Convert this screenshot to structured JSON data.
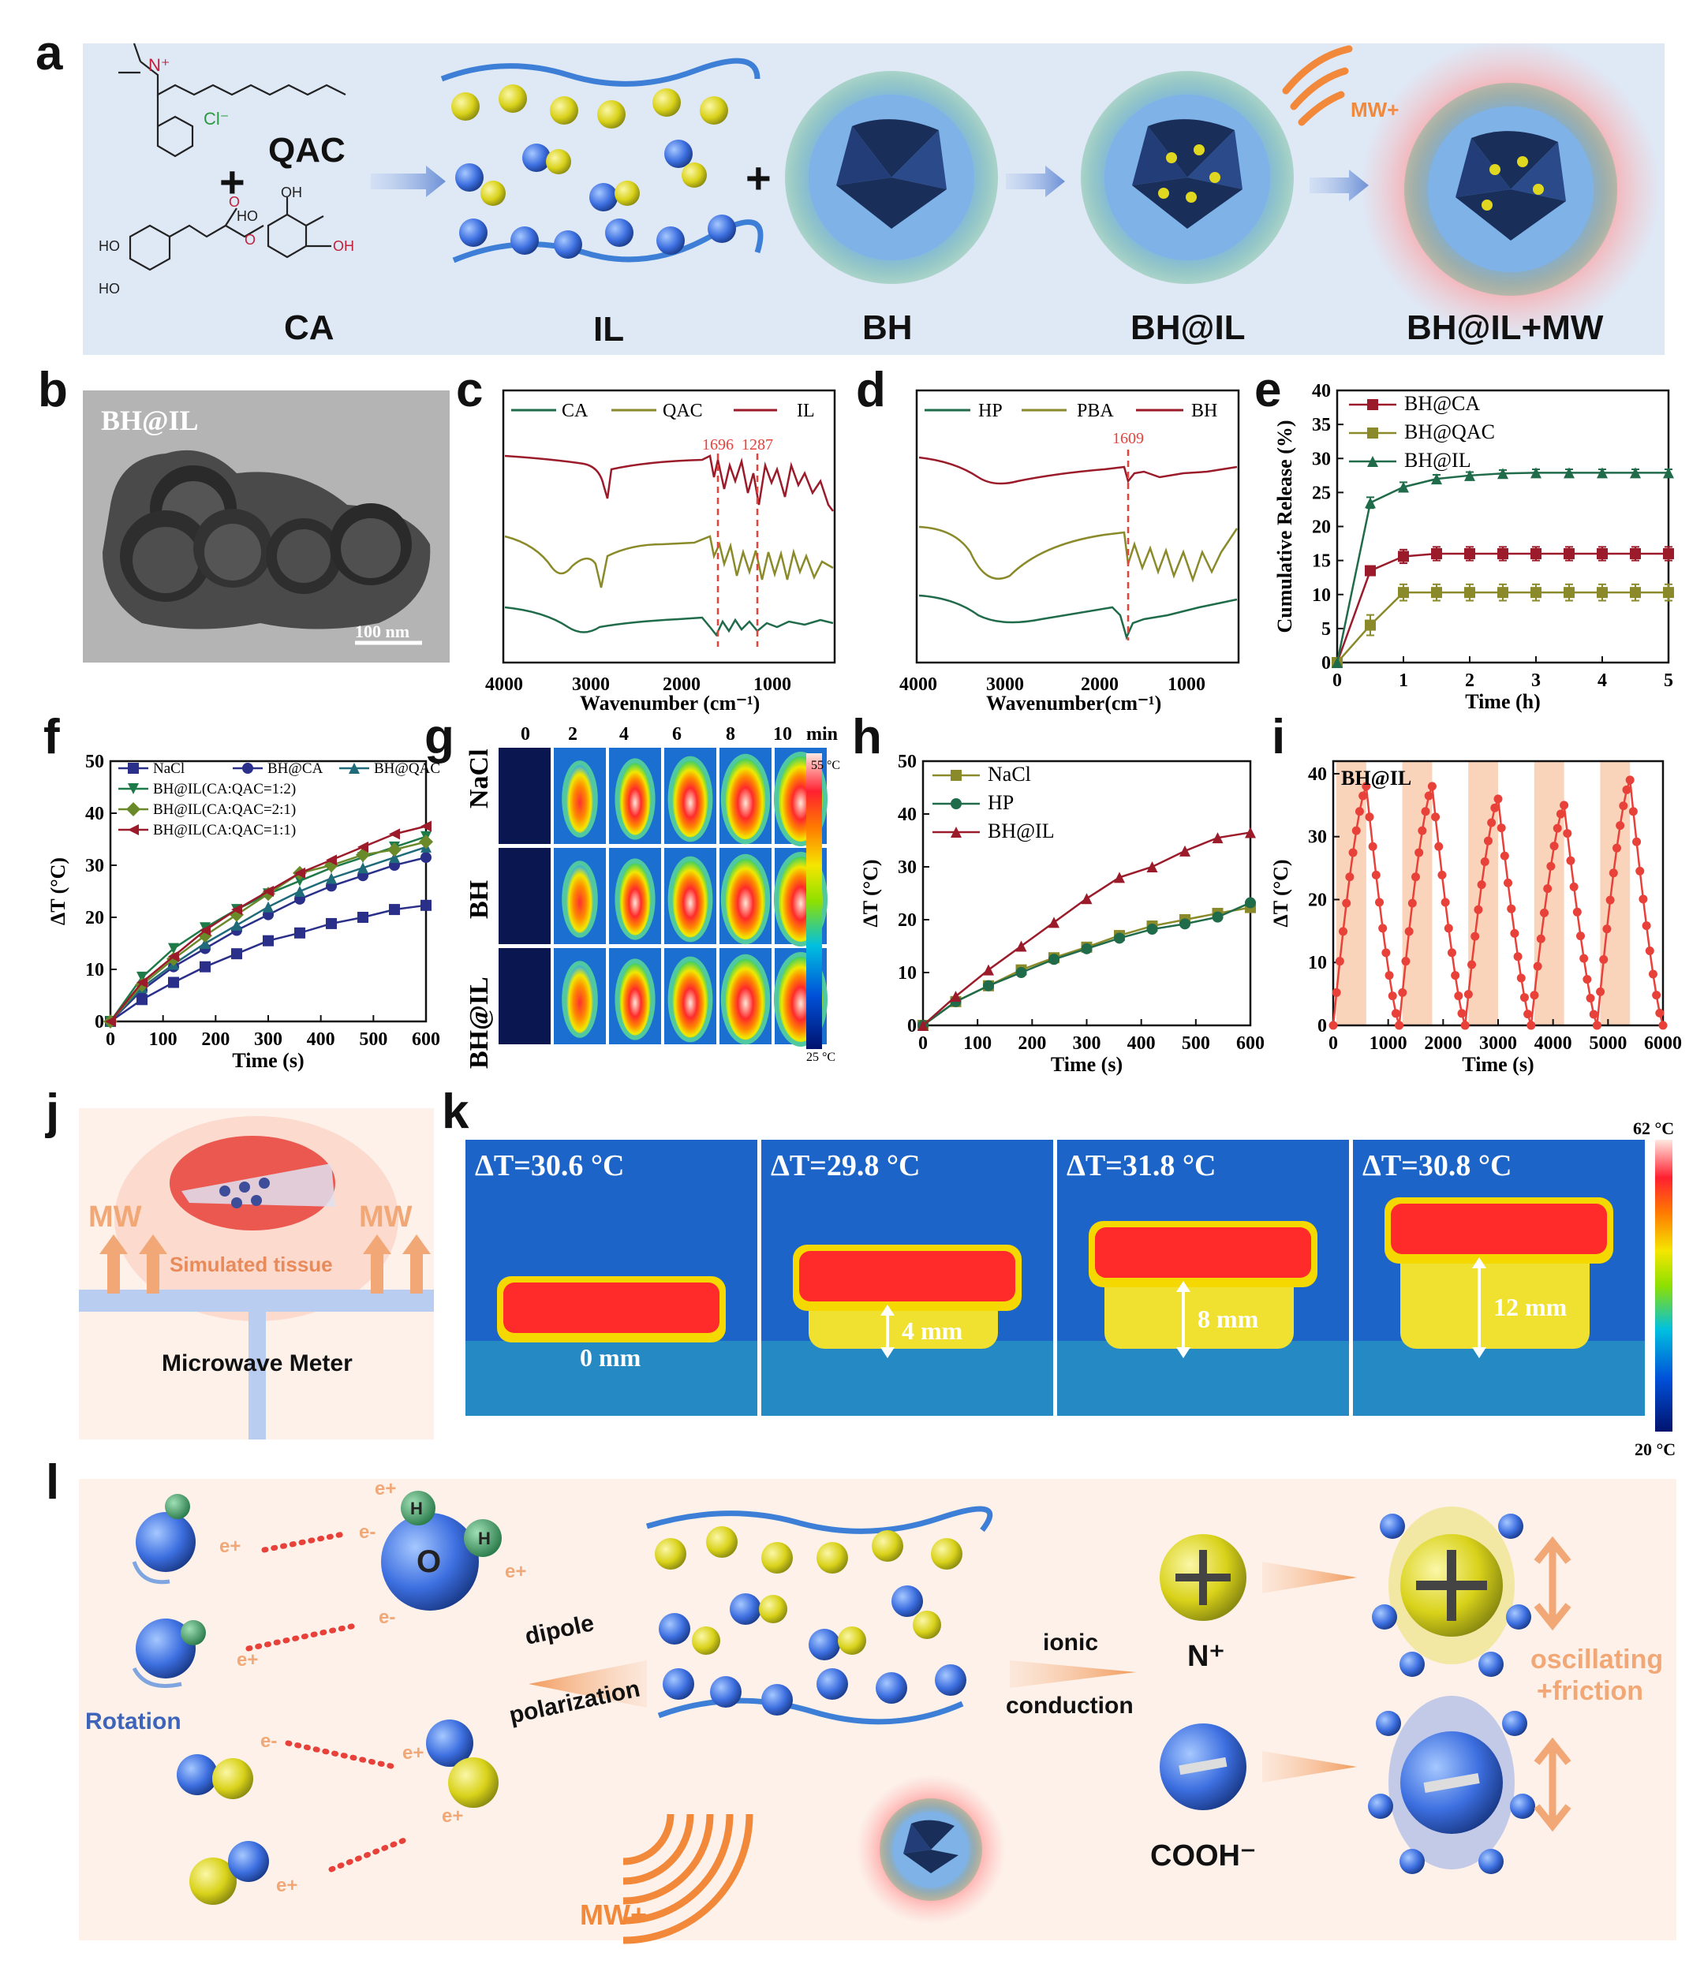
{
  "panel_letters": [
    "a",
    "b",
    "c",
    "d",
    "e",
    "f",
    "g",
    "h",
    "i",
    "j",
    "k",
    "l"
  ],
  "panel_a": {
    "labels": [
      "QAC",
      "CA",
      "IL",
      "BH",
      "BH@IL",
      "BH@IL+MW"
    ],
    "chem_texts": {
      "cl": "Cl⁻",
      "n": "N⁺",
      "oh": "OH",
      "ho": "HO",
      "ho_ring": "HO",
      "oh_top": "OH",
      "o": "O",
      "o2": "O"
    },
    "mw_label": "MW+",
    "plus": "+"
  },
  "panel_b": {
    "label": "BH@IL",
    "scalebar": "100 nm"
  },
  "panel_c": {
    "legend": [
      "CA",
      "QAC",
      "IL"
    ],
    "peaks": [
      "1696",
      "1287"
    ],
    "xticks": [
      "4000",
      "3000",
      "2000",
      "1000"
    ],
    "xlabel": "Wavenumber (cm⁻¹)"
  },
  "panel_d": {
    "legend": [
      "HP",
      "PBA",
      "BH"
    ],
    "peaks": [
      "1609"
    ],
    "xticks": [
      "4000",
      "3000",
      "2000",
      "1000"
    ],
    "xlabel": "Wavenumber(cm⁻¹)"
  },
  "panel_g": {
    "time_labels": [
      "0",
      "2",
      "4",
      "6",
      "8",
      "10"
    ],
    "time_unit": "min",
    "rows": [
      "NaCl",
      "BH",
      "BH@IL"
    ],
    "scale_max": "55 °C",
    "scale_min": "25 °C"
  },
  "panel_j": {
    "mw_left": "MW",
    "mw_right": "MW",
    "tissue": "Simulated tissue",
    "meter": "Microwave Meter"
  },
  "panel_k": {
    "frames": [
      {
        "dt": "ΔT=30.6 °C",
        "depth": "0 mm"
      },
      {
        "dt": "ΔT=29.8 °C",
        "depth": "4 mm"
      },
      {
        "dt": "ΔT=31.8 °C",
        "depth": "8 mm"
      },
      {
        "dt": "ΔT=30.8 °C",
        "depth": "12 mm"
      }
    ],
    "scale_max": "62 °C",
    "scale_min": "20 °C"
  },
  "panel_l": {
    "o_atom": "O",
    "h_atom": "H",
    "electron_pos": "e+",
    "electron_neg": "e-",
    "rotation": "Rotation",
    "dipole": "dipole",
    "polarization": "polarization",
    "ionic": "ionic",
    "conduction": "conduction",
    "cation": "N⁺",
    "anion": "COOH⁻",
    "oscillating": "oscillating",
    "friction": "+friction",
    "mw": "MW+"
  },
  "colors": {
    "dark_red": "#9b1b2a",
    "olive": "#8a8a2a",
    "dark_green": "#1f6b4a",
    "red": "#e8413a",
    "navy": "#2a2f8a",
    "light_blue_bg": "#dfe8f5",
    "peach_bg": "#fdf1ea",
    "orange": "#f5a66a"
  },
  "chart_data": [
    {
      "panel": "e",
      "type": "line",
      "xlabel": "Time (h)",
      "ylabel": "Cumulative Release (%)",
      "xlim": [
        0,
        5
      ],
      "ylim": [
        0,
        40
      ],
      "xticks": [
        0,
        1,
        2,
        3,
        4,
        5
      ],
      "yticks": [
        0,
        5,
        10,
        15,
        20,
        25,
        30,
        35,
        40
      ],
      "legend": "top-left",
      "series": [
        {
          "name": "BH@CA",
          "color": "#9b1b2a",
          "marker": "square",
          "x": [
            0,
            0.5,
            1,
            1.5,
            2,
            2.5,
            3,
            3.5,
            4,
            4.5,
            5
          ],
          "y": [
            0,
            13.5,
            15.6,
            16.0,
            16.0,
            16.0,
            16.0,
            16.0,
            16.0,
            16.0,
            16.0
          ],
          "err": [
            0,
            0.5,
            1.0,
            1.0,
            1.0,
            1.0,
            1.0,
            1.0,
            1.0,
            1.0,
            1.0
          ]
        },
        {
          "name": "BH@QAC",
          "color": "#8a8a2a",
          "marker": "square",
          "x": [
            0,
            0.5,
            1,
            1.5,
            2,
            2.5,
            3,
            3.5,
            4,
            4.5,
            5
          ],
          "y": [
            0,
            5.5,
            10.3,
            10.3,
            10.3,
            10.3,
            10.3,
            10.3,
            10.3,
            10.3,
            10.3
          ],
          "err": [
            0,
            1.5,
            1.2,
            1.2,
            1.2,
            1.2,
            1.2,
            1.2,
            1.2,
            1.2,
            1.2
          ]
        },
        {
          "name": "BH@IL",
          "color": "#1f6b4a",
          "marker": "triangle",
          "x": [
            0,
            0.5,
            1,
            1.5,
            2,
            2.5,
            3,
            3.5,
            4,
            4.5,
            5
          ],
          "y": [
            0,
            23.5,
            25.8,
            27.0,
            27.5,
            27.8,
            27.9,
            27.9,
            27.9,
            27.9,
            27.9
          ],
          "err": [
            0,
            0.8,
            0.7,
            0.6,
            0.5,
            0.5,
            0.5,
            0.5,
            0.5,
            0.5,
            0.5
          ]
        }
      ]
    },
    {
      "panel": "f",
      "type": "line",
      "xlabel": "Time (s)",
      "ylabel": "ΔT (°C)",
      "xlim": [
        0,
        600
      ],
      "ylim": [
        0,
        50
      ],
      "xticks": [
        0,
        100,
        200,
        300,
        400,
        500,
        600
      ],
      "yticks": [
        0,
        10,
        20,
        30,
        40,
        50
      ],
      "legend": "top",
      "series": [
        {
          "name": "NaCl",
          "color": "#2a2f8a",
          "marker": "square",
          "x": [
            0,
            60,
            120,
            180,
            240,
            300,
            360,
            420,
            480,
            540,
            600
          ],
          "y": [
            0,
            4.2,
            7.5,
            10.5,
            13,
            15.5,
            17,
            18.8,
            20,
            21.5,
            22.3
          ]
        },
        {
          "name": "BH@CA",
          "color": "#2a2f8a",
          "marker": "circle",
          "x": [
            0,
            60,
            120,
            180,
            240,
            300,
            360,
            420,
            480,
            540,
            600
          ],
          "y": [
            0,
            6,
            10.5,
            14,
            17.5,
            20.5,
            23.5,
            26,
            28,
            30,
            31.5
          ]
        },
        {
          "name": "BH@QAC",
          "color": "#1f6b7a",
          "marker": "triangle",
          "x": [
            0,
            60,
            120,
            180,
            240,
            300,
            360,
            420,
            480,
            540,
            600
          ],
          "y": [
            0,
            6.5,
            11,
            15,
            18.5,
            22,
            25,
            27.5,
            29.5,
            31.5,
            33.5
          ]
        },
        {
          "name": "BH@IL(CA:QAC=1:2)",
          "color": "#1f7a4a",
          "marker": "triangle-down",
          "x": [
            0,
            60,
            120,
            180,
            240,
            300,
            360,
            420,
            480,
            540,
            600
          ],
          "y": [
            0,
            8.5,
            14,
            18,
            21.5,
            24.5,
            27,
            29.5,
            31.5,
            33.5,
            35.5
          ]
        },
        {
          "name": "BH@IL(CA:QAC=2:1)",
          "color": "#6a8a2a",
          "marker": "diamond",
          "x": [
            0,
            60,
            120,
            180,
            240,
            300,
            360,
            420,
            480,
            540,
            600
          ],
          "y": [
            0,
            7,
            12,
            16.5,
            20.5,
            24.5,
            28.5,
            30,
            32,
            33,
            34.5
          ]
        },
        {
          "name": "BH@IL(CA:QAC=1:1)",
          "color": "#9b1b2a",
          "marker": "triangle-left",
          "x": [
            0,
            60,
            120,
            180,
            240,
            300,
            360,
            420,
            480,
            540,
            600
          ],
          "y": [
            0,
            7.5,
            12.5,
            17.5,
            21.5,
            25,
            28.5,
            31,
            33.5,
            36,
            37.5
          ]
        }
      ]
    },
    {
      "panel": "h",
      "type": "line",
      "xlabel": "Time (s)",
      "ylabel": "ΔT (°C)",
      "xlim": [
        0,
        600
      ],
      "ylim": [
        0,
        50
      ],
      "xticks": [
        0,
        100,
        200,
        300,
        400,
        500,
        600
      ],
      "yticks": [
        0,
        10,
        20,
        30,
        40,
        50
      ],
      "legend": "top-left",
      "series": [
        {
          "name": "NaCl",
          "color": "#8a8a2a",
          "marker": "square",
          "x": [
            0,
            60,
            120,
            180,
            240,
            300,
            360,
            420,
            480,
            540,
            600
          ],
          "y": [
            0,
            4.5,
            7.5,
            10.5,
            12.8,
            14.8,
            17,
            18.8,
            20,
            21.2,
            22.3
          ]
        },
        {
          "name": "HP",
          "color": "#1f6b4a",
          "marker": "circle",
          "x": [
            0,
            60,
            120,
            180,
            240,
            300,
            360,
            420,
            480,
            540,
            600
          ],
          "y": [
            0,
            4.5,
            7.5,
            10,
            12.5,
            14.5,
            16.5,
            18.2,
            19.2,
            20.5,
            23.2
          ]
        },
        {
          "name": "BH@IL",
          "color": "#9b1b2a",
          "marker": "triangle",
          "x": [
            0,
            60,
            120,
            180,
            240,
            300,
            360,
            420,
            480,
            540,
            600
          ],
          "y": [
            0,
            5.5,
            10.5,
            15,
            19.5,
            24,
            28,
            30,
            33,
            35.5,
            36.5
          ]
        }
      ]
    },
    {
      "panel": "i",
      "type": "line",
      "title": "BH@IL",
      "xlabel": "Time (s)",
      "ylabel": "ΔT (°C)",
      "xlim": [
        0,
        6000
      ],
      "ylim": [
        0,
        42
      ],
      "xticks": [
        0,
        1000,
        2000,
        3000,
        4000,
        5000,
        6000
      ],
      "yticks": [
        0,
        10,
        20,
        30,
        40
      ],
      "on_intervals": [
        [
          0,
          600
        ],
        [
          1200,
          1800
        ],
        [
          2400,
          3000
        ],
        [
          3600,
          4200
        ],
        [
          4800,
          5400
        ]
      ],
      "cycle_peaks": [
        38,
        38,
        36,
        35,
        39
      ],
      "color": "#e8413a"
    }
  ]
}
